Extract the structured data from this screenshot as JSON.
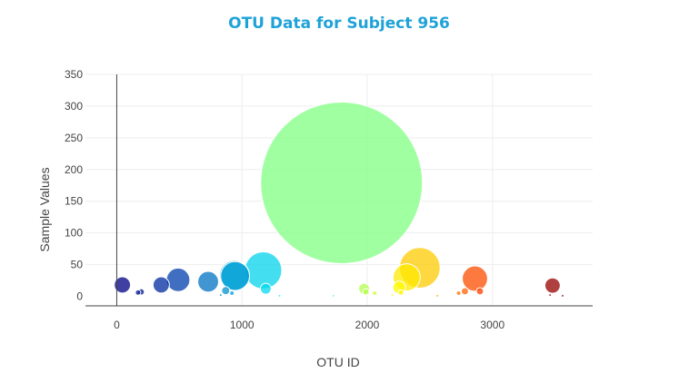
{
  "chart_data": {
    "type": "scatter",
    "title": "OTU Data for Subject 956",
    "xlabel": "OTU ID",
    "ylabel": "Sample Values",
    "xlim": [
      -250,
      3800
    ],
    "ylim": [
      -15,
      350
    ],
    "xticks": [
      0,
      1000,
      2000,
      3000
    ],
    "yticks": [
      0,
      50,
      100,
      150,
      200,
      250,
      300,
      350
    ],
    "grid": true,
    "legend": "none",
    "marker_size_encodes": "sample value",
    "colorscale": "Jet",
    "series": [
      {
        "points": [
          {
            "x": 45,
            "y": 18
          },
          {
            "x": 170,
            "y": 6
          },
          {
            "x": 195,
            "y": 7
          },
          {
            "x": 355,
            "y": 18
          },
          {
            "x": 490,
            "y": 26
          },
          {
            "x": 730,
            "y": 23
          },
          {
            "x": 830,
            "y": 2
          },
          {
            "x": 870,
            "y": 9
          },
          {
            "x": 920,
            "y": 5
          },
          {
            "x": 940,
            "y": 33
          },
          {
            "x": 945,
            "y": 32
          },
          {
            "x": 1170,
            "y": 41
          },
          {
            "x": 1190,
            "y": 12
          },
          {
            "x": 1300,
            "y": 1
          },
          {
            "x": 1730,
            "y": 1
          },
          {
            "x": 1795,
            "y": 179
          },
          {
            "x": 1975,
            "y": 12
          },
          {
            "x": 1990,
            "y": 7
          },
          {
            "x": 2060,
            "y": 5
          },
          {
            "x": 2200,
            "y": 2
          },
          {
            "x": 2255,
            "y": 14
          },
          {
            "x": 2270,
            "y": 6
          },
          {
            "x": 2315,
            "y": 30
          },
          {
            "x": 2420,
            "y": 45
          },
          {
            "x": 2560,
            "y": 1
          },
          {
            "x": 2730,
            "y": 5
          },
          {
            "x": 2780,
            "y": 8
          },
          {
            "x": 2860,
            "y": 28
          },
          {
            "x": 2900,
            "y": 8
          },
          {
            "x": 3460,
            "y": 2
          },
          {
            "x": 3480,
            "y": 17
          },
          {
            "x": 3560,
            "y": 1
          }
        ]
      }
    ],
    "colors": {
      "title": "#1fa2d8",
      "axis_text": "#444444",
      "grid": "#eeeeee",
      "zero_line": "#444444"
    }
  }
}
